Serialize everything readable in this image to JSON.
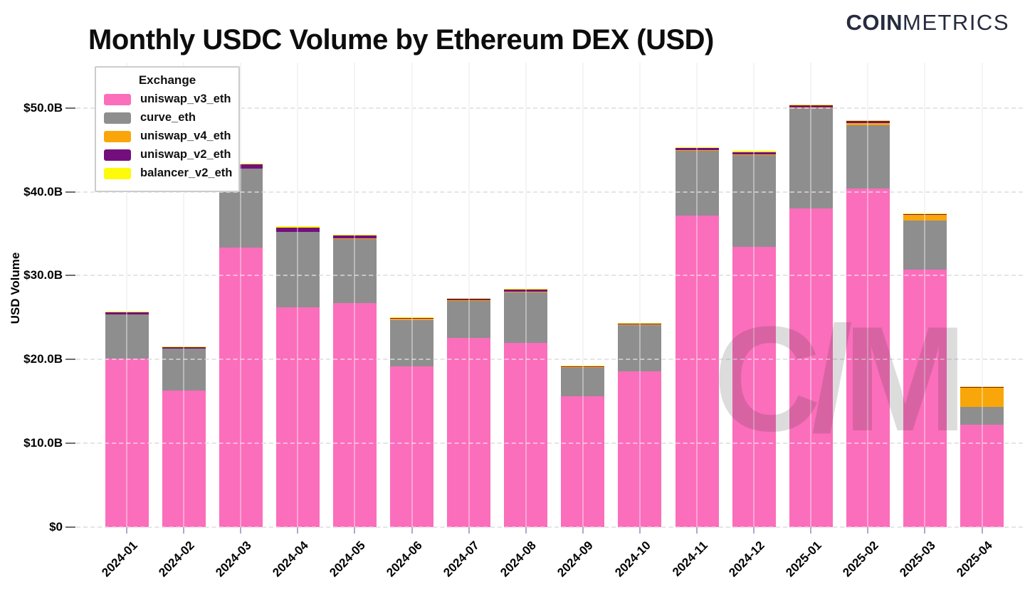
{
  "title": "Monthly USDC Volume by Ethereum DEX (USD)",
  "logo": {
    "bold_part": "COIN",
    "light_part": "METRICS"
  },
  "watermark": "C/M",
  "legend": {
    "title": "Exchange",
    "items": [
      {
        "label": "uniswap_v3_eth",
        "color": "#fb6ebb"
      },
      {
        "label": "curve_eth",
        "color": "#8e8e8e"
      },
      {
        "label": "uniswap_v4_eth",
        "color": "#f9a60a"
      },
      {
        "label": "uniswap_v2_eth",
        "color": "#730f7d"
      },
      {
        "label": "balancer_v2_eth",
        "color": "#fdfa0b"
      }
    ]
  },
  "chart_data": {
    "type": "bar",
    "stacked": true,
    "title": "Monthly USDC Volume by Ethereum DEX (USD)",
    "xlabel": "",
    "ylabel": "USD Volume",
    "unit": "USD billions",
    "grid": true,
    "legend_position": "top-left",
    "ylim": [
      0,
      55.4
    ],
    "categories": [
      "2024-01",
      "2024-02",
      "2024-03",
      "2024-04",
      "2024-05",
      "2024-06",
      "2024-07",
      "2024-08",
      "2024-09",
      "2024-10",
      "2024-11",
      "2024-12",
      "2025-01",
      "2025-02",
      "2025-03",
      "2025-04"
    ],
    "series": [
      {
        "name": "uniswap_v3_eth",
        "color": "#fb6ebb",
        "values": [
          20.1,
          16.3,
          33.3,
          26.2,
          26.7,
          19.2,
          22.6,
          22.0,
          15.6,
          18.6,
          37.2,
          33.4,
          38.0,
          40.4,
          30.7,
          12.2
        ]
      },
      {
        "name": "curve_eth",
        "color": "#8e8e8e",
        "values": [
          5.3,
          5.0,
          9.5,
          9.0,
          7.7,
          5.5,
          4.4,
          6.0,
          3.4,
          5.5,
          7.7,
          11.0,
          12.0,
          7.5,
          5.9,
          2.1
        ]
      },
      {
        "name": "uniswap_v4_eth",
        "color": "#f9a60a",
        "values": [
          0,
          0,
          0,
          0,
          0.05,
          0.15,
          0.1,
          0.05,
          0.1,
          0.1,
          0.05,
          0.05,
          0.05,
          0.3,
          0.65,
          2.3
        ]
      },
      {
        "name": "uniswap_v2_eth",
        "color": "#730f7d",
        "values": [
          0.25,
          0.2,
          0.45,
          0.5,
          0.3,
          0.15,
          0.2,
          0.3,
          0.1,
          0.1,
          0.25,
          0.3,
          0.25,
          0.3,
          0.1,
          0.15
        ]
      },
      {
        "name": "balancer_v2_eth",
        "color": "#fdfa0b",
        "values": [
          0.05,
          0.05,
          0.1,
          0.15,
          0.15,
          0.05,
          0.05,
          0.1,
          0.05,
          0.05,
          0.1,
          0.1,
          0.1,
          0.05,
          0.05,
          0.05
        ]
      }
    ],
    "y_ticks": [
      {
        "value": 0,
        "label": "$0"
      },
      {
        "value": 10,
        "label": "$10.0B"
      },
      {
        "value": 20,
        "label": "$20.0B"
      },
      {
        "value": 30,
        "label": "$30.0B"
      },
      {
        "value": 40,
        "label": "$40.0B"
      },
      {
        "value": 50,
        "label": "$50.0B"
      }
    ]
  }
}
